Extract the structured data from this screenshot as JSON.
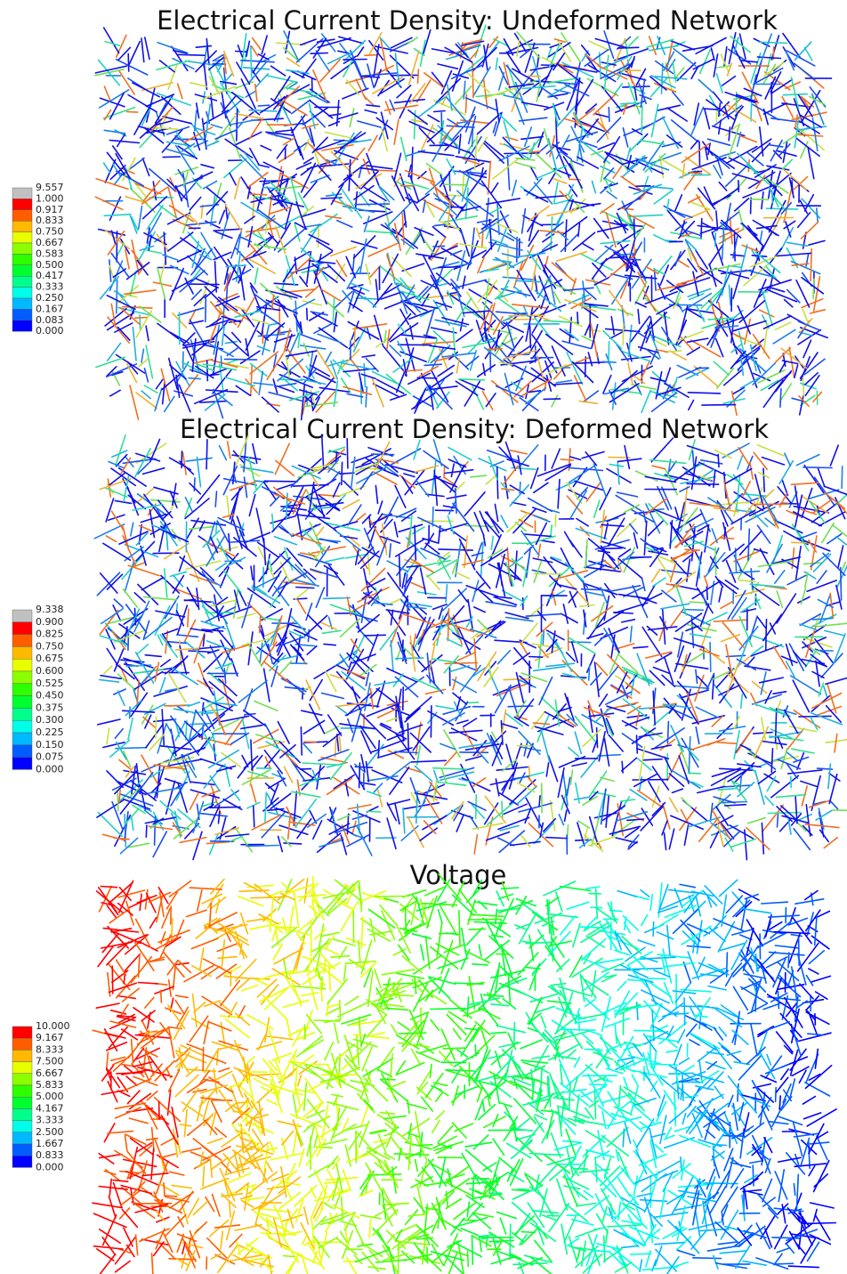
{
  "panels": [
    {
      "title": "Electrical Current Density: Undeformed Network",
      "legend": [
        "9.557",
        "1.000",
        "0.917",
        "0.833",
        "0.750",
        "0.667",
        "0.583",
        "0.500",
        "0.417",
        "0.333",
        "0.250",
        "0.167",
        "0.083",
        "0.000"
      ]
    },
    {
      "title": "Electrical Current Density: Deformed Network",
      "legend": [
        "9.338",
        "0.900",
        "0.825",
        "0.750",
        "0.675",
        "0.600",
        "0.525",
        "0.450",
        "0.375",
        "0.300",
        "0.225",
        "0.150",
        "0.075",
        "0.000"
      ]
    },
    {
      "title": "Voltage",
      "legend": [
        "10.000",
        "9.167",
        "8.333",
        "7.500",
        "6.667",
        "5.833",
        "5.000",
        "4.167",
        "3.333",
        "2.500",
        "1.667",
        "0.833",
        "0.000"
      ]
    }
  ]
}
